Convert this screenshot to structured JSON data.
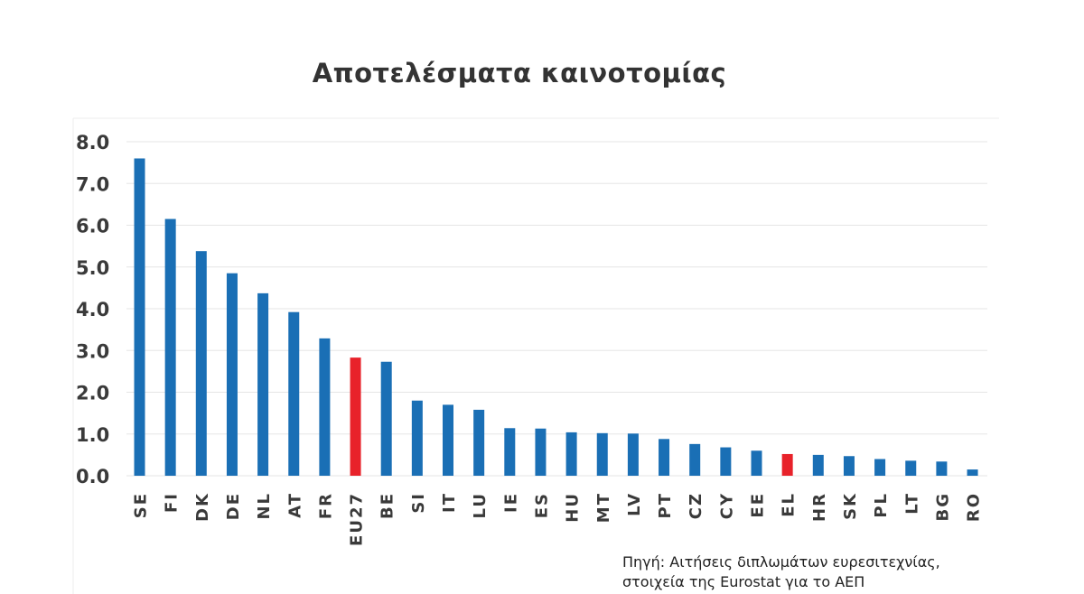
{
  "chart_data": {
    "type": "bar",
    "title": "Αποτελέσματα καινοτομίας",
    "xlabel": "",
    "ylabel": "",
    "ylim": [
      0,
      8
    ],
    "yticks": [
      "0.0",
      "1.0",
      "2.0",
      "3.0",
      "4.0",
      "5.0",
      "6.0",
      "7.0",
      "8.0"
    ],
    "grid": true,
    "legend": "none",
    "categories": [
      "SE",
      "FI",
      "DK",
      "DE",
      "NL",
      "AT",
      "FR",
      "EU27",
      "BE",
      "SI",
      "IT",
      "LU",
      "IE",
      "ES",
      "HU",
      "MT",
      "LV",
      "PT",
      "CZ",
      "CY",
      "EE",
      "EL",
      "HR",
      "SK",
      "PL",
      "LT",
      "BG",
      "RO"
    ],
    "values": [
      7.6,
      6.15,
      5.38,
      4.85,
      4.37,
      3.92,
      3.29,
      2.83,
      2.73,
      1.8,
      1.7,
      1.58,
      1.14,
      1.13,
      1.04,
      1.02,
      1.01,
      0.88,
      0.76,
      0.68,
      0.6,
      0.52,
      0.5,
      0.47,
      0.4,
      0.36,
      0.34,
      0.15
    ],
    "highlight": [
      "EU27",
      "EL"
    ],
    "colors": {
      "bar": "#1a6fb5",
      "highlight": "#e8222a",
      "grid": "#e6e6e6",
      "text": "#3a3a3a"
    }
  },
  "source": {
    "line1": "Πηγή: Αιτήσεις διπλωμάτων ευρεσιτεχνίας,",
    "line2": "στοιχεία της Eurostat για το ΑΕΠ"
  }
}
